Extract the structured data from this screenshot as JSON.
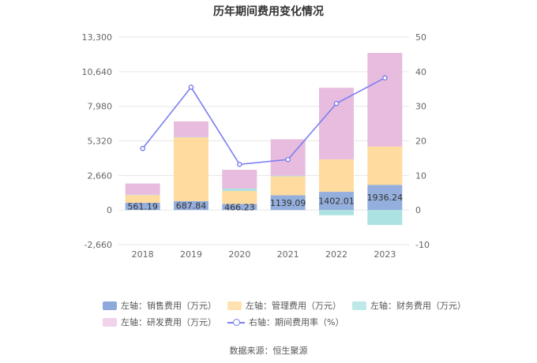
{
  "page": {
    "title": "历年期间费用变化情况",
    "source": "数据来源：恒生聚源"
  },
  "chart_data": {
    "type": "bar",
    "stacked": true,
    "title": "历年期间费用变化情况",
    "categories": [
      "2018",
      "2019",
      "2020",
      "2021",
      "2022",
      "2023"
    ],
    "y_left": {
      "ticks": [
        "13,300",
        "10,640",
        "7,980",
        "5,320",
        "2,660",
        "0",
        "-2,660"
      ],
      "ylim": [
        -2660,
        13300
      ]
    },
    "y_right": {
      "ticks": [
        "50",
        "40",
        "30",
        "20",
        "10",
        "0",
        "-10"
      ],
      "ylim": [
        -10,
        50
      ]
    },
    "series": [
      {
        "name": "左轴：销售费用（万元）",
        "axis": "left",
        "color": "#8eaadb",
        "values": [
          561.19,
          687.84,
          466.23,
          1139.09,
          1402.01,
          1936.24
        ],
        "labels": [
          "561.19",
          "687.84",
          "466.23",
          "1139.09",
          "1402.01",
          "1936.24"
        ]
      },
      {
        "name": "左轴：管理费用（万元）",
        "axis": "left",
        "color": "#ffd99a",
        "values": [
          580,
          4900,
          1000,
          1450,
          2500,
          2950
        ]
      },
      {
        "name": "左轴：财务费用（万元）",
        "axis": "left",
        "color": "#a8e0e0",
        "values": [
          30,
          30,
          180,
          50,
          -400,
          -1150
        ]
      },
      {
        "name": "左轴：研发费用（万元）",
        "axis": "left",
        "color": "#e6b8dc",
        "values": [
          870,
          1200,
          1450,
          2800,
          5500,
          7200
        ]
      },
      {
        "name": "右轴：期间费用率（%）",
        "axis": "right",
        "type": "line",
        "color": "#7b7ff0",
        "values": [
          17.8,
          35.5,
          13.2,
          14.6,
          30.8,
          38.2
        ]
      }
    ],
    "grid": true,
    "legend_position": "bottom"
  },
  "legend": {
    "row1": [
      "左轴：销售费用（万元）",
      "左轴：管理费用（万元）",
      "左轴：财务费用（万元）"
    ],
    "row2": [
      "左轴：研发费用（万元）",
      "右轴：期间费用率（%）"
    ]
  }
}
